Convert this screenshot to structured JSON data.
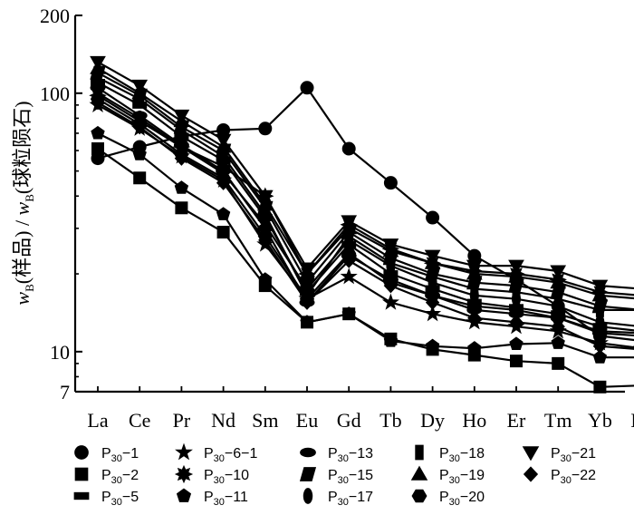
{
  "chart_data": {
    "type": "line",
    "y_scale": "log",
    "ylim": [
      7,
      200
    ],
    "ylabel": {
      "w_main": "w",
      "w_sub": "B",
      "mid": "(样品) / ",
      "w2_main": "w",
      "w2_sub": "B",
      "end": "(球粒陨石)"
    },
    "y_ticks": [
      "200",
      "100",
      "10",
      "7"
    ],
    "categories": [
      "La",
      "Ce",
      "Pr",
      "Nd",
      "Sm",
      "Eu",
      "Gd",
      "Tb",
      "Dy",
      "Ho",
      "Er",
      "Tm",
      "Yb",
      "Lu"
    ],
    "legend_prefix": "P",
    "legend_sub": "30",
    "series": [
      {
        "name": "P30-1",
        "label_suffix": "−1",
        "marker": "circle",
        "values": [
          56,
          62,
          68,
          72,
          73,
          105,
          61,
          45,
          33,
          23.5,
          19,
          15,
          11.5,
          11
        ]
      },
      {
        "name": "P30-2",
        "label_suffix": "−2",
        "marker": "square",
        "values": [
          61,
          47,
          36,
          29,
          18,
          13,
          14,
          11.2,
          10.2,
          9.7,
          9.2,
          9.0,
          7.3,
          7.4
        ]
      },
      {
        "name": "P30-5",
        "label_suffix": "−5",
        "marker": "dash",
        "values": [
          110,
          90,
          68,
          55,
          33,
          17,
          26,
          20,
          17.5,
          15.5,
          14.8,
          14,
          12.5,
          12
        ]
      },
      {
        "name": "P30-6-1",
        "label_suffix": "−6−1",
        "marker": "star",
        "values": [
          90,
          73,
          57,
          46,
          26,
          16,
          19.5,
          15.5,
          14,
          13,
          12.5,
          12.0,
          10.8,
          10.3
        ]
      },
      {
        "name": "P30-10",
        "label_suffix": "−10",
        "marker": "burst",
        "values": [
          98,
          78,
          62,
          52,
          40,
          20,
          31,
          25,
          22,
          20.5,
          20,
          19,
          17,
          16.5
        ]
      },
      {
        "name": "P30-11",
        "label_suffix": "−11",
        "marker": "pentagon",
        "values": [
          70,
          58,
          43,
          34,
          19,
          13,
          14,
          11,
          10.5,
          10.3,
          10.7,
          10.8,
          9.5,
          9.5
        ]
      },
      {
        "name": "P30-13",
        "label_suffix": "−13",
        "marker": "ellipse",
        "values": [
          105,
          82,
          63,
          50,
          30,
          15.5,
          23.5,
          19,
          16.5,
          14.5,
          14.0,
          13.5,
          11.8,
          11.5
        ]
      },
      {
        "name": "P30-15",
        "label_suffix": "−15",
        "marker": "parallelogram",
        "values": [
          120,
          98,
          74,
          60,
          36,
          18.5,
          29,
          23,
          20,
          18.5,
          18,
          17,
          15,
          14.5
        ]
      },
      {
        "name": "P30-17",
        "label_suffix": "−17",
        "marker": "tallellipse",
        "values": [
          100,
          80,
          62,
          49,
          31,
          17.5,
          27,
          21.5,
          18.5,
          16.5,
          16,
          15,
          13,
          12.5
        ]
      },
      {
        "name": "P30-18",
        "label_suffix": "−18",
        "marker": "bar",
        "values": [
          115,
          95,
          72,
          57,
          34,
          16.5,
          28,
          22,
          19.5,
          17.5,
          17,
          16,
          14.5,
          14.5
        ]
      },
      {
        "name": "P30-19",
        "label_suffix": "−19",
        "marker": "triangle",
        "values": [
          125,
          100,
          78,
          62,
          37,
          20,
          30,
          24.5,
          22,
          20,
          19.5,
          18.5,
          16.5,
          16
        ]
      },
      {
        "name": "P30-20",
        "label_suffix": "−20",
        "marker": "hexagon",
        "values": [
          95,
          76,
          58,
          47,
          28,
          16,
          24,
          18.5,
          16.5,
          15,
          14.5,
          13.5,
          12,
          11.8
        ]
      },
      {
        "name": "P30-21",
        "label_suffix": "−21",
        "marker": "tridown",
        "values": [
          132,
          107,
          82,
          66,
          40,
          21,
          32,
          26,
          23.5,
          21.5,
          21.5,
          20.5,
          18,
          17.5
        ]
      },
      {
        "name": "P30-22",
        "label_suffix": "−22",
        "marker": "diamond",
        "values": [
          92,
          74,
          56,
          45,
          27,
          15.5,
          22.5,
          18,
          15.5,
          13.5,
          13,
          12.5,
          10.5,
          10.2
        ]
      }
    ]
  }
}
